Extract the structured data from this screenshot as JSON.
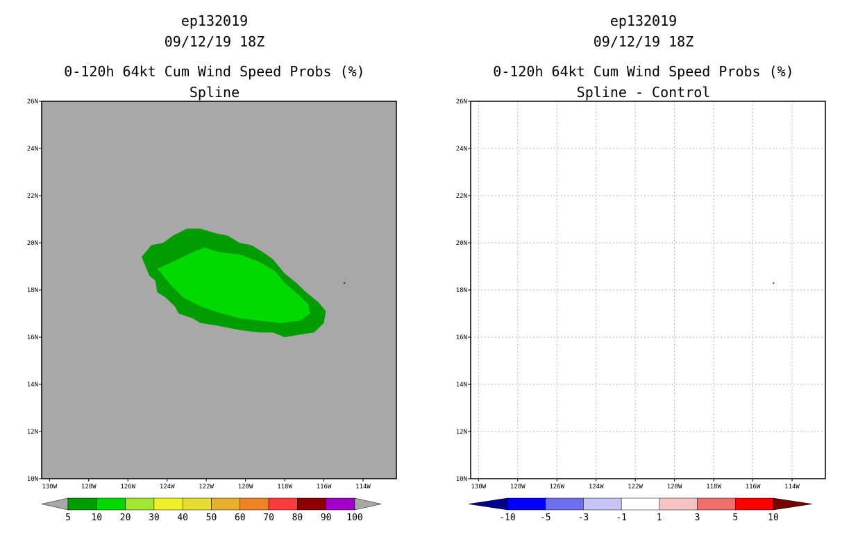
{
  "chart_data": [
    {
      "type": "filled-contour map",
      "title_lines": [
        "ep132019",
        "09/12/19 18Z",
        "0-120h 64kt Cum Wind Speed Probs (%)",
        "Spline"
      ],
      "background_color": "#a8a8a8",
      "x_ticks": [
        "130W",
        "128W",
        "126W",
        "124W",
        "122W",
        "120W",
        "118W",
        "116W",
        "114W"
      ],
      "x_tick_values": [
        -130,
        -128,
        -126,
        -124,
        -122,
        -120,
        -118,
        -116,
        -114
      ],
      "y_ticks": [
        "10N",
        "12N",
        "14N",
        "16N",
        "18N",
        "20N",
        "22N",
        "24N",
        "26N"
      ],
      "y_tick_values": [
        10,
        12,
        14,
        16,
        18,
        20,
        22,
        24,
        26
      ],
      "xlim": [
        -130.4,
        -112.3
      ],
      "ylim": [
        10,
        26
      ],
      "grid": false,
      "contours": [
        {
          "level_range": "5-10",
          "color": "#019b02",
          "polygon": [
            [
              -125.3,
              19.4
            ],
            [
              -124.8,
              19.9
            ],
            [
              -124.2,
              20.0
            ],
            [
              -123.7,
              20.3
            ],
            [
              -123.0,
              20.6
            ],
            [
              -122.3,
              20.6
            ],
            [
              -121.5,
              20.4
            ],
            [
              -120.9,
              20.3
            ],
            [
              -120.3,
              20.0
            ],
            [
              -119.7,
              19.9
            ],
            [
              -119.1,
              19.6
            ],
            [
              -118.6,
              19.3
            ],
            [
              -118.0,
              18.7
            ],
            [
              -117.4,
              18.3
            ],
            [
              -116.9,
              17.9
            ],
            [
              -116.3,
              17.5
            ],
            [
              -115.9,
              17.1
            ],
            [
              -116.0,
              16.6
            ],
            [
              -116.5,
              16.2
            ],
            [
              -117.3,
              16.1
            ],
            [
              -118.0,
              16.0
            ],
            [
              -118.6,
              16.2
            ],
            [
              -119.3,
              16.2
            ],
            [
              -120.3,
              16.3
            ],
            [
              -120.9,
              16.4
            ],
            [
              -121.5,
              16.5
            ],
            [
              -122.3,
              16.6
            ],
            [
              -122.7,
              16.8
            ],
            [
              -123.4,
              17.0
            ],
            [
              -123.6,
              17.3
            ],
            [
              -124.1,
              17.7
            ],
            [
              -124.5,
              17.9
            ],
            [
              -124.6,
              18.4
            ],
            [
              -124.9,
              18.6
            ],
            [
              -125.0,
              18.8
            ],
            [
              -125.3,
              19.4
            ]
          ]
        },
        {
          "level_range": "10-20",
          "color": "#02d802",
          "polygon": [
            [
              -124.5,
              18.9
            ],
            [
              -123.7,
              19.2
            ],
            [
              -122.7,
              19.6
            ],
            [
              -122.1,
              19.8
            ],
            [
              -121.3,
              19.6
            ],
            [
              -120.3,
              19.5
            ],
            [
              -119.3,
              19.2
            ],
            [
              -118.5,
              18.8
            ],
            [
              -118.0,
              18.3
            ],
            [
              -117.3,
              17.8
            ],
            [
              -116.8,
              17.4
            ],
            [
              -116.7,
              17.0
            ],
            [
              -117.2,
              16.7
            ],
            [
              -118.2,
              16.6
            ],
            [
              -119.3,
              16.7
            ],
            [
              -120.3,
              16.8
            ],
            [
              -121.2,
              17.0
            ],
            [
              -122.3,
              17.3
            ],
            [
              -123.2,
              17.7
            ],
            [
              -123.8,
              18.2
            ],
            [
              -124.5,
              18.9
            ]
          ]
        }
      ],
      "markers": [
        {
          "lon": -114.95,
          "lat": 18.3,
          "label": ""
        }
      ],
      "colorbar": {
        "labels": [
          "5",
          "10",
          "20",
          "30",
          "40",
          "50",
          "60",
          "70",
          "80",
          "90",
          "100"
        ],
        "colors": [
          "#019b02",
          "#02d802",
          "#a0e632",
          "#f0f028",
          "#e6dc32",
          "#e6af2d",
          "#f08228",
          "#fa3c3c",
          "#8c0000",
          "#a000c8"
        ],
        "under_color": "#a8a8a8",
        "over_color": "#a8a8a8"
      }
    },
    {
      "type": "filled-contour map",
      "title_lines": [
        "ep132019",
        "09/12/19 18Z",
        "0-120h 64kt Cum Wind Speed Probs (%)",
        "Spline - Control"
      ],
      "background_color": "#ffffff",
      "x_ticks": [
        "130W",
        "128W",
        "126W",
        "124W",
        "122W",
        "120W",
        "118W",
        "116W",
        "114W"
      ],
      "x_tick_values": [
        -130,
        -128,
        -126,
        -124,
        -122,
        -120,
        -118,
        -116,
        -114
      ],
      "y_ticks": [
        "10N",
        "12N",
        "14N",
        "16N",
        "18N",
        "20N",
        "22N",
        "24N",
        "26N"
      ],
      "y_tick_values": [
        10,
        12,
        14,
        16,
        18,
        20,
        22,
        24,
        26
      ],
      "xlim": [
        -130.4,
        -112.3
      ],
      "ylim": [
        10,
        26
      ],
      "grid": true,
      "contours": [],
      "markers": [
        {
          "lon": -114.95,
          "lat": 18.3,
          "label": ""
        }
      ],
      "colorbar": {
        "labels": [
          "-10",
          "-5",
          "-3",
          "-1",
          "1",
          "3",
          "5",
          "10"
        ],
        "colors": [
          "#0000ff",
          "#6e6ef0",
          "#c4c4f5",
          "#ffffff",
          "#f5c4c4",
          "#f06e6e",
          "#ff0000"
        ],
        "under_color": "#00008b",
        "over_color": "#780000"
      }
    }
  ]
}
